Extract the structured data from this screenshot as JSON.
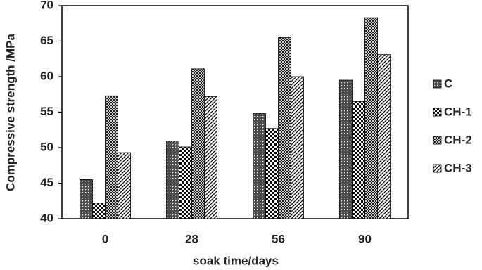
{
  "chart_data": {
    "type": "bar",
    "x_label": "soak time/days",
    "y_label": "Compressive strength /MPa",
    "categories": [
      "0",
      "28",
      "56",
      "90"
    ],
    "series": [
      {
        "name": "C",
        "color": "#000000",
        "values": [
          45.5,
          50.9,
          54.8,
          59.5
        ]
      },
      {
        "name": "CH-1",
        "color": "#000000",
        "values": [
          42.2,
          50.1,
          52.7,
          56.5
        ]
      },
      {
        "name": "CH-2",
        "color": "#000000",
        "values": [
          57.3,
          61.1,
          65.5,
          68.3
        ]
      },
      {
        "name": "CH-3",
        "color": "#000000",
        "values": [
          49.3,
          57.2,
          60.0,
          63.1
        ]
      }
    ],
    "ylim": [
      40,
      70
    ],
    "yticks": [
      40,
      45,
      50,
      55,
      60,
      65,
      70
    ],
    "grid": false,
    "legend": "right"
  }
}
